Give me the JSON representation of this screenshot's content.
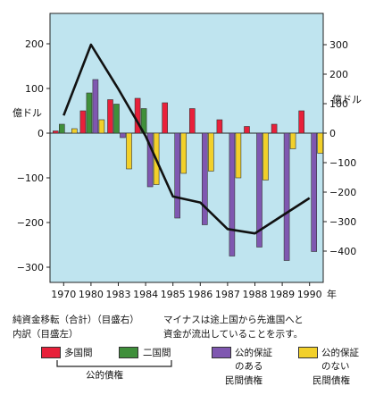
{
  "chart_data": {
    "type": "bar",
    "categories": [
      "1970",
      "1980",
      "1983",
      "1984",
      "1985",
      "1986",
      "1987",
      "1988",
      "1989",
      "1990"
    ],
    "x_unit": "年",
    "series": [
      {
        "name": "多国間",
        "color": "#e8203a",
        "axis": "left",
        "values": [
          5,
          50,
          75,
          78,
          68,
          55,
          30,
          15,
          20,
          50
        ]
      },
      {
        "name": "二国間",
        "color": "#3f8f3a",
        "axis": "left",
        "values": [
          20,
          90,
          65,
          55,
          0,
          0,
          0,
          0,
          0,
          0
        ]
      },
      {
        "name": "公的保証のある民間債権",
        "color": "#7f57b0",
        "axis": "left",
        "values": [
          0,
          120,
          -10,
          -120,
          -190,
          -205,
          -275,
          -255,
          -285,
          -265
        ]
      },
      {
        "name": "公的保証のない民間債権",
        "color": "#f2d02a",
        "axis": "left",
        "values": [
          10,
          30,
          -80,
          -115,
          -90,
          -85,
          -100,
          -105,
          -35,
          -45
        ]
      }
    ],
    "net_line": {
      "name": "純資金移転（合計）",
      "axis": "right",
      "values": [
        60,
        300,
        150,
        -10,
        -215,
        -235,
        -325,
        -340,
        -280,
        -220
      ]
    },
    "left_axis": {
      "label": "億ドル",
      "ylim": [
        -330,
        240
      ],
      "ticks": [
        200,
        100,
        0,
        -100,
        -200,
        -300
      ],
      "tick_labels": [
        "200",
        "100",
        "0",
        "−100",
        "−200",
        "−300"
      ]
    },
    "right_axis": {
      "label": "億ドル",
      "ylim": [
        -450,
        370
      ],
      "ticks": [
        300,
        200,
        100,
        0,
        -100,
        -200,
        -300,
        -400
      ],
      "tick_labels": [
        "300",
        "200",
        "100",
        "0",
        "−100",
        "−200",
        "−300",
        "−400"
      ]
    }
  },
  "caption": {
    "line1": "純資金移転（合計）（目盛右）",
    "line2": "内訳（目盛左）",
    "note1": "マイナスは途上国から先進国へと",
    "note2": "資金が流出していることを示す。"
  },
  "legend": {
    "multilateral": "多国間",
    "bilateral": "二国間",
    "public_group": "公的債権",
    "guaranteed_l1": "公的保証",
    "guaranteed_l2": "のある",
    "guaranteed_l3": "民間債権",
    "unguaranteed_l1": "公的保証",
    "unguaranteed_l2": "のない",
    "unguaranteed_l3": "民間債権"
  }
}
